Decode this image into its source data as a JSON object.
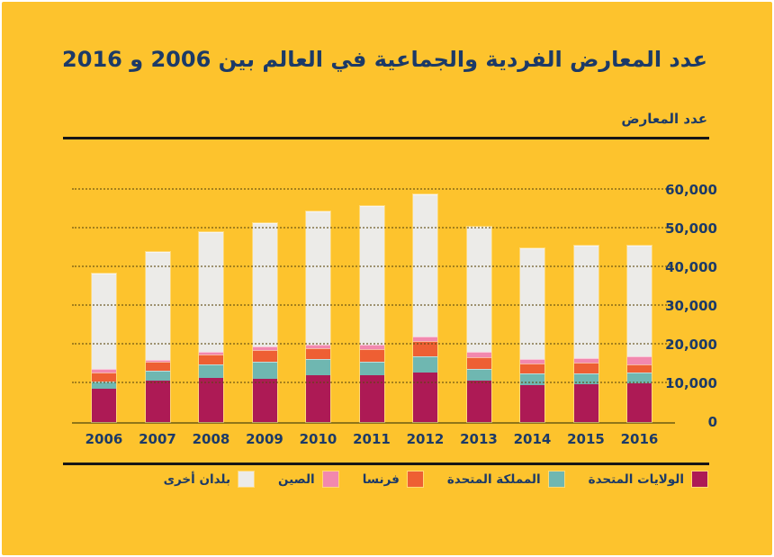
{
  "title": "عدد المعارض الفردية والجماعية في العالم بين 2006 و 2016",
  "axis_title": "عدد المعارض",
  "colors": {
    "background": "#FDC32D",
    "text_navy": "#1C3A67",
    "rule_black": "#161616",
    "baseline_olive": "#8F7518"
  },
  "chart_data": {
    "type": "bar",
    "stacked": true,
    "title": "عدد المعارض الفردية والجماعية في العالم بين 2006 و 2016",
    "ylabel": "عدد المعارض",
    "ylim": [
      0,
      60000
    ],
    "grid": "dotted-horizontal",
    "legend_position": "bottom-right",
    "value_axis_side": "right",
    "categories": [
      "2006",
      "2007",
      "2008",
      "2009",
      "2010",
      "2011",
      "2012",
      "2013",
      "2014",
      "2015",
      "2016"
    ],
    "series": [
      {
        "name": "الولايات المتحدة",
        "color": "#AD1A55",
        "values": [
          8600,
          10600,
          11500,
          11200,
          12200,
          12000,
          12800,
          10800,
          9600,
          9700,
          9900
        ]
      },
      {
        "name": "المملكة المتحدة",
        "color": "#6FB7B1",
        "values": [
          1900,
          2600,
          3400,
          4500,
          4000,
          3500,
          4100,
          3000,
          2900,
          2900,
          2900
        ]
      },
      {
        "name": "فرنسا",
        "color": "#EE5F33",
        "values": [
          2300,
          2300,
          2500,
          3000,
          2800,
          3300,
          4000,
          2900,
          2700,
          2700,
          2200
        ]
      },
      {
        "name": "الصين",
        "color": "#F288AE",
        "values": [
          1000,
          600,
          800,
          900,
          1000,
          1200,
          1300,
          1400,
          1200,
          1300,
          1900
        ]
      },
      {
        "name": "بلدان أخرى",
        "color": "#ECEBE8",
        "values": [
          24700,
          27800,
          30900,
          31800,
          34400,
          35900,
          36700,
          32400,
          28400,
          29000,
          28700
        ]
      }
    ],
    "yticks": [
      {
        "value": 0,
        "label": "0"
      },
      {
        "value": 10000,
        "label": "10,000"
      },
      {
        "value": 20000,
        "label": "20,000"
      },
      {
        "value": 30000,
        "label": "30,000"
      },
      {
        "value": 40000,
        "label": "40,000"
      },
      {
        "value": 50000,
        "label": "50,000"
      },
      {
        "value": 60000,
        "label": "60,000"
      }
    ]
  }
}
